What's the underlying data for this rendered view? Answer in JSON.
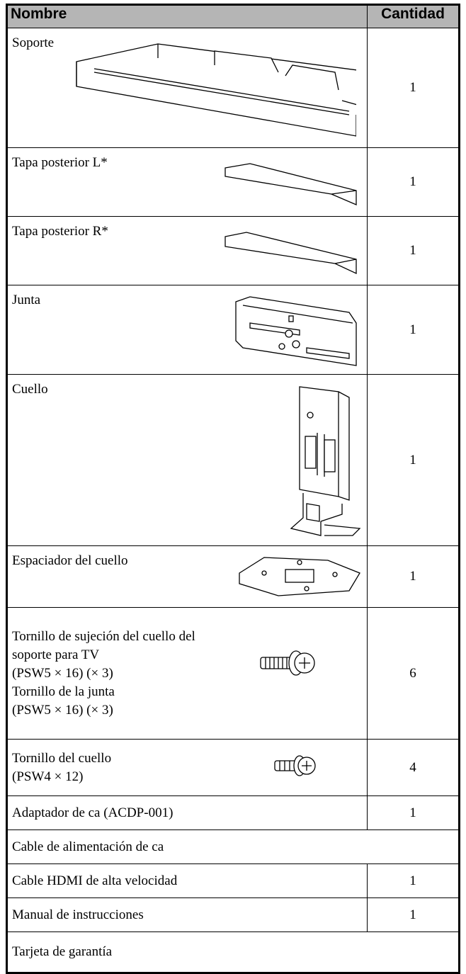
{
  "table": {
    "header": [
      "Nombre",
      "Cantidad"
    ],
    "rows": [
      {
        "name": [
          "Soporte"
        ],
        "quantity": 1
      },
      {
        "name": [
          "Tapa posterior L*"
        ],
        "quantity": 1
      },
      {
        "name": [
          "Tapa posterior R*"
        ],
        "quantity": 1
      },
      {
        "name": [
          "Junta"
        ],
        "quantity": 1
      },
      {
        "name": [
          "Cuello"
        ],
        "quantity": 1
      },
      {
        "name": [
          "Espaciador del cuello"
        ],
        "quantity": 1
      },
      {
        "name": [
          "Tornillo de sujeción del cuello del",
          "soporte para TV",
          "(PSW5 × 16) (× 3)",
          "Tornillo de la junta",
          "(PSW5 × 16) (× 3)"
        ],
        "quantity": 6
      },
      {
        "name": [
          "Tornillo del cuello",
          "(PSW4 × 12)"
        ],
        "quantity": 4
      },
      {
        "name": [
          "Adaptador de ca (ACDP-001)"
        ],
        "quantity": 1
      },
      {
        "name": [
          "Cable de alimentación de ca"
        ]
      },
      {
        "name": [
          "Cable HDMI de alta velocidad"
        ],
        "quantity": 1
      },
      {
        "name": [
          "Manual de instrucciones"
        ],
        "quantity": 1
      },
      {
        "name": [
          "Tarjeta de garantía"
        ]
      }
    ]
  }
}
